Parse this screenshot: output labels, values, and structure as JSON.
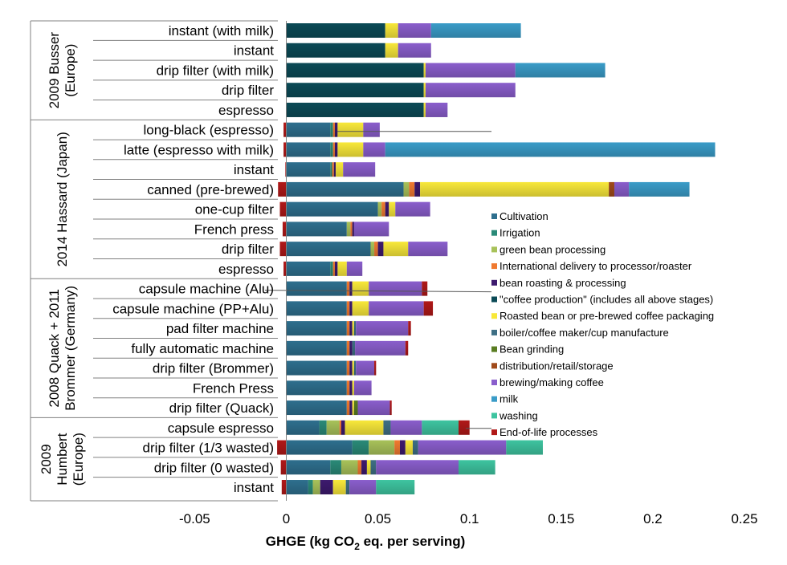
{
  "chart_data": {
    "type": "bar",
    "orientation": "horizontal",
    "stacked": true,
    "xlabel_parts": [
      "GHGE (kg CO",
      "2",
      " eq. per serving)"
    ],
    "xlim": [
      -0.05,
      0.25
    ],
    "x_ticks": [
      -0.05,
      0,
      0.05,
      0.1,
      0.15,
      0.2,
      0.25
    ],
    "x_tick_labels": [
      "-0.05",
      "0",
      "0.05",
      "0.1",
      "0.15",
      "0.2",
      "0.25"
    ],
    "legend_position": "right",
    "grid": false,
    "stages": [
      {
        "name": "Cultivation",
        "color": "#2e6f8e"
      },
      {
        "name": "Irrigation",
        "color": "#2a8a78"
      },
      {
        "name": "green bean processing",
        "color": "#a8c25a"
      },
      {
        "name": "International delivery to processor/roaster",
        "color": "#f07a30"
      },
      {
        "name": "bean roasting & processing",
        "color": "#3d1a6e"
      },
      {
        "name": "\"coffee production\" (includes all above stages)",
        "color": "#0b4a56"
      },
      {
        "name": "Roasted bean or pre-brewed coffee packaging",
        "color": "#f8e83a"
      },
      {
        "name": "boiler/coffee maker/cup manufacture",
        "color": "#3e6f84"
      },
      {
        "name": "Bean grinding",
        "color": "#5a7d22"
      },
      {
        "name": "distribution/retail/storage",
        "color": "#a04a1a"
      },
      {
        "name": "brewing/making coffee",
        "color": "#8a5ecc"
      },
      {
        "name": "milk",
        "color": "#3a9cc8"
      },
      {
        "name": "washing",
        "color": "#3ec4a0"
      },
      {
        "name": "End-of-life processes",
        "color": "#b01818"
      }
    ],
    "groups": [
      {
        "lines": [
          "2009 Busser",
          "(Europe)"
        ],
        "first": 0,
        "last": 4
      },
      {
        "lines": [
          "2014 Hassard (Japan)"
        ],
        "first": 5,
        "last": 12
      },
      {
        "lines": [
          "2008 Quack + 2011",
          "Brommer (Germany)"
        ],
        "first": 13,
        "last": 19
      },
      {
        "lines": [
          "2009",
          "Humbert",
          "(Europe)"
        ],
        "first": 20,
        "last": 23
      }
    ],
    "bars": [
      {
        "label": "instant (with milk)",
        "segments": [
          [
            5,
            0.054
          ],
          [
            6,
            0.007
          ],
          [
            10,
            0.018
          ],
          [
            11,
            0.049
          ]
        ]
      },
      {
        "label": "instant",
        "segments": [
          [
            5,
            0.054
          ],
          [
            6,
            0.007
          ],
          [
            10,
            0.018
          ]
        ]
      },
      {
        "label": "drip filter (with milk)",
        "segments": [
          [
            5,
            0.075
          ],
          [
            6,
            0.001
          ],
          [
            10,
            0.049
          ],
          [
            11,
            0.049
          ]
        ]
      },
      {
        "label": "drip filter",
        "segments": [
          [
            5,
            0.075
          ],
          [
            6,
            0.001
          ],
          [
            10,
            0.049
          ]
        ]
      },
      {
        "label": "espresso",
        "segments": [
          [
            5,
            0.075
          ],
          [
            6,
            0.001
          ],
          [
            10,
            0.012
          ]
        ]
      },
      {
        "label": "long-black (espresso)",
        "segments": [
          [
            13,
            -0.0015
          ],
          [
            0,
            0.024
          ],
          [
            1,
            0.0015
          ],
          [
            3,
            0.001
          ],
          [
            4,
            0.0015
          ],
          [
            6,
            0.014
          ],
          [
            10,
            0.009
          ]
        ]
      },
      {
        "label": "latte (espresso with milk)",
        "segments": [
          [
            13,
            -0.0015
          ],
          [
            0,
            0.024
          ],
          [
            1,
            0.0015
          ],
          [
            3,
            0.001
          ],
          [
            4,
            0.0015
          ],
          [
            6,
            0.014
          ],
          [
            10,
            0.012
          ],
          [
            11,
            0.18
          ]
        ]
      },
      {
        "label": "instant",
        "segments": [
          [
            13,
            -0.0005
          ],
          [
            0,
            0.024
          ],
          [
            1,
            0.001
          ],
          [
            3,
            0.001
          ],
          [
            4,
            0.001
          ],
          [
            6,
            0.004
          ],
          [
            10,
            0.0175
          ]
        ]
      },
      {
        "label": "canned (pre-brewed)",
        "segments": [
          [
            13,
            -0.0045
          ],
          [
            0,
            0.064
          ],
          [
            2,
            0.003
          ],
          [
            3,
            0.003
          ],
          [
            4,
            0.003
          ],
          [
            6,
            0.103
          ],
          [
            9,
            0.003
          ],
          [
            10,
            0.008
          ],
          [
            11,
            0.033
          ]
        ]
      },
      {
        "label": "one-cup filter",
        "segments": [
          [
            13,
            -0.0035
          ],
          [
            0,
            0.05
          ],
          [
            2,
            0.002
          ],
          [
            3,
            0.002
          ],
          [
            4,
            0.002
          ],
          [
            6,
            0.0035
          ],
          [
            10,
            0.019
          ]
        ]
      },
      {
        "label": "French press",
        "segments": [
          [
            13,
            -0.002
          ],
          [
            0,
            0.033
          ],
          [
            2,
            0.002
          ],
          [
            3,
            0.001
          ],
          [
            4,
            0.001
          ],
          [
            10,
            0.019
          ]
        ]
      },
      {
        "label": "drip filter",
        "segments": [
          [
            13,
            -0.0035
          ],
          [
            0,
            0.046
          ],
          [
            2,
            0.002
          ],
          [
            3,
            0.002
          ],
          [
            4,
            0.003
          ],
          [
            6,
            0.0135
          ],
          [
            10,
            0.0215
          ]
        ]
      },
      {
        "label": "espresso",
        "segments": [
          [
            13,
            -0.0015
          ],
          [
            0,
            0.024
          ],
          [
            1,
            0.0015
          ],
          [
            3,
            0.001
          ],
          [
            4,
            0.0015
          ],
          [
            6,
            0.005
          ],
          [
            10,
            0.0085
          ]
        ]
      },
      {
        "label": "capsule machine (Alu)",
        "segments": [
          [
            0,
            0.033
          ],
          [
            3,
            0.0015
          ],
          [
            4,
            0.0015
          ],
          [
            6,
            0.009
          ],
          [
            10,
            0.029
          ],
          [
            13,
            0.003
          ]
        ]
      },
      {
        "label": "capsule machine (PP+Alu)",
        "segments": [
          [
            0,
            0.033
          ],
          [
            3,
            0.0015
          ],
          [
            4,
            0.0015
          ],
          [
            6,
            0.009
          ],
          [
            10,
            0.03
          ],
          [
            13,
            0.005
          ]
        ]
      },
      {
        "label": "pad filter machine",
        "segments": [
          [
            0,
            0.033
          ],
          [
            3,
            0.0015
          ],
          [
            4,
            0.0015
          ],
          [
            6,
            0.001
          ],
          [
            7,
            0.001
          ],
          [
            10,
            0.0285
          ],
          [
            13,
            0.0015
          ]
        ]
      },
      {
        "label": "fully automatic machine",
        "segments": [
          [
            0,
            0.033
          ],
          [
            3,
            0.0015
          ],
          [
            4,
            0.0015
          ],
          [
            7,
            0.0015
          ],
          [
            10,
            0.0275
          ],
          [
            13,
            0.0015
          ]
        ]
      },
      {
        "label": "drip filter (Brommer)",
        "segments": [
          [
            0,
            0.033
          ],
          [
            3,
            0.0015
          ],
          [
            4,
            0.0015
          ],
          [
            6,
            0.001
          ],
          [
            7,
            0.001
          ],
          [
            10,
            0.01
          ],
          [
            13,
            0.001
          ]
        ]
      },
      {
        "label": "French Press",
        "segments": [
          [
            0,
            0.033
          ],
          [
            3,
            0.0015
          ],
          [
            4,
            0.0015
          ],
          [
            6,
            0.001
          ],
          [
            10,
            0.0095
          ]
        ]
      },
      {
        "label": "drip filter (Quack)",
        "segments": [
          [
            0,
            0.033
          ],
          [
            3,
            0.0015
          ],
          [
            4,
            0.0015
          ],
          [
            6,
            0.001
          ],
          [
            8,
            0.002
          ],
          [
            10,
            0.0175
          ],
          [
            13,
            0.001
          ]
        ]
      },
      {
        "label": "capsule espresso",
        "segments": [
          [
            0,
            0.018
          ],
          [
            1,
            0.004
          ],
          [
            2,
            0.007
          ],
          [
            3,
            0.001
          ],
          [
            4,
            0.002
          ],
          [
            6,
            0.021
          ],
          [
            7,
            0.004
          ],
          [
            10,
            0.017
          ],
          [
            12,
            0.02
          ],
          [
            13,
            0.006
          ]
        ]
      },
      {
        "label": "drip filter (1/3 wasted)",
        "segments": [
          [
            13,
            -0.005
          ],
          [
            0,
            0.036
          ],
          [
            1,
            0.009
          ],
          [
            2,
            0.014
          ],
          [
            3,
            0.003
          ],
          [
            4,
            0.003
          ],
          [
            6,
            0.004
          ],
          [
            7,
            0.003
          ],
          [
            10,
            0.048
          ],
          [
            12,
            0.02
          ]
        ]
      },
      {
        "label": "drip filter (0 wasted)",
        "segments": [
          [
            13,
            -0.003
          ],
          [
            0,
            0.024
          ],
          [
            1,
            0.006
          ],
          [
            2,
            0.009
          ],
          [
            3,
            0.002
          ],
          [
            4,
            0.003
          ],
          [
            6,
            0.002
          ],
          [
            7,
            0.003
          ],
          [
            10,
            0.045
          ],
          [
            12,
            0.02
          ]
        ]
      },
      {
        "label": "instant",
        "segments": [
          [
            13,
            -0.0025
          ],
          [
            0,
            0.012
          ],
          [
            1,
            0.0025
          ],
          [
            2,
            0.004
          ],
          [
            4,
            0.007
          ],
          [
            6,
            0.007
          ],
          [
            7,
            0.002
          ],
          [
            10,
            0.0145
          ],
          [
            12,
            0.021
          ]
        ]
      }
    ]
  }
}
